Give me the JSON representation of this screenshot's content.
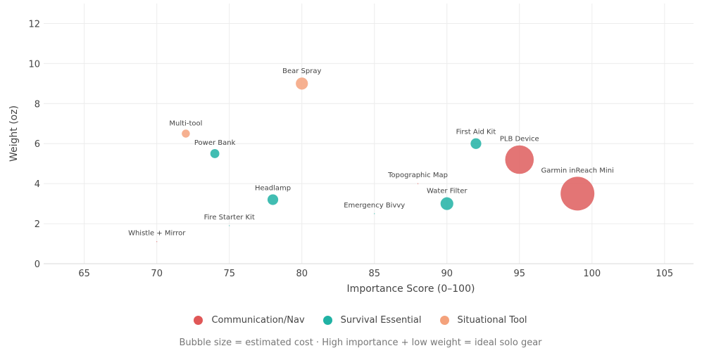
{
  "chart_data": {
    "type": "scatter",
    "xlabel": "Importance Score (0–100)",
    "ylabel": "Weight (oz)",
    "xlim": [
      62.2,
      107
    ],
    "ylim": [
      0,
      13
    ],
    "xticks": [
      65,
      70,
      75,
      80,
      85,
      90,
      95,
      100,
      105
    ],
    "yticks": [
      0,
      2,
      4,
      6,
      8,
      10,
      12
    ],
    "grid": true,
    "legend_placement": "bottom",
    "note": "Bubble size = estimated cost · High importance + low weight = ideal solo gear",
    "categories": [
      {
        "name": "Communication/Nav",
        "color": "#e06666"
      },
      {
        "name": "Survival Essential",
        "color": "#20b2a4"
      },
      {
        "name": "Situational Tool",
        "color": "#f4a27c"
      }
    ],
    "points": [
      {
        "label": "Garmin inReach Mini",
        "x": 99,
        "y": 3.5,
        "size": 350,
        "category": "Communication/Nav"
      },
      {
        "label": "PLB Device",
        "x": 95,
        "y": 5.2,
        "size": 250,
        "category": "Communication/Nav"
      },
      {
        "label": "Topographic Map",
        "x": 88,
        "y": 4.0,
        "size": 0,
        "category": "Communication/Nav"
      },
      {
        "label": "Whistle + Mirror",
        "x": 70,
        "y": 1.1,
        "size": 0,
        "category": "Communication/Nav"
      },
      {
        "label": "First Aid Kit",
        "x": 92,
        "y": 6.0,
        "size": 35,
        "category": "Survival Essential"
      },
      {
        "label": "Water Filter",
        "x": 90,
        "y": 3.0,
        "size": 50,
        "category": "Survival Essential"
      },
      {
        "label": "Emergency Bivvy",
        "x": 85,
        "y": 2.5,
        "size": 0,
        "category": "Survival Essential"
      },
      {
        "label": "Headlamp",
        "x": 78,
        "y": 3.2,
        "size": 35,
        "category": "Survival Essential"
      },
      {
        "label": "Fire Starter Kit",
        "x": 75,
        "y": 1.9,
        "size": 0,
        "category": "Survival Essential"
      },
      {
        "label": "Power Bank",
        "x": 74,
        "y": 5.5,
        "size": 25,
        "category": "Survival Essential"
      },
      {
        "label": "Bear Spray",
        "x": 80,
        "y": 9.0,
        "size": 45,
        "category": "Situational Tool"
      },
      {
        "label": "Multi-tool",
        "x": 72,
        "y": 6.5,
        "size": 20,
        "category": "Situational Tool"
      }
    ]
  }
}
